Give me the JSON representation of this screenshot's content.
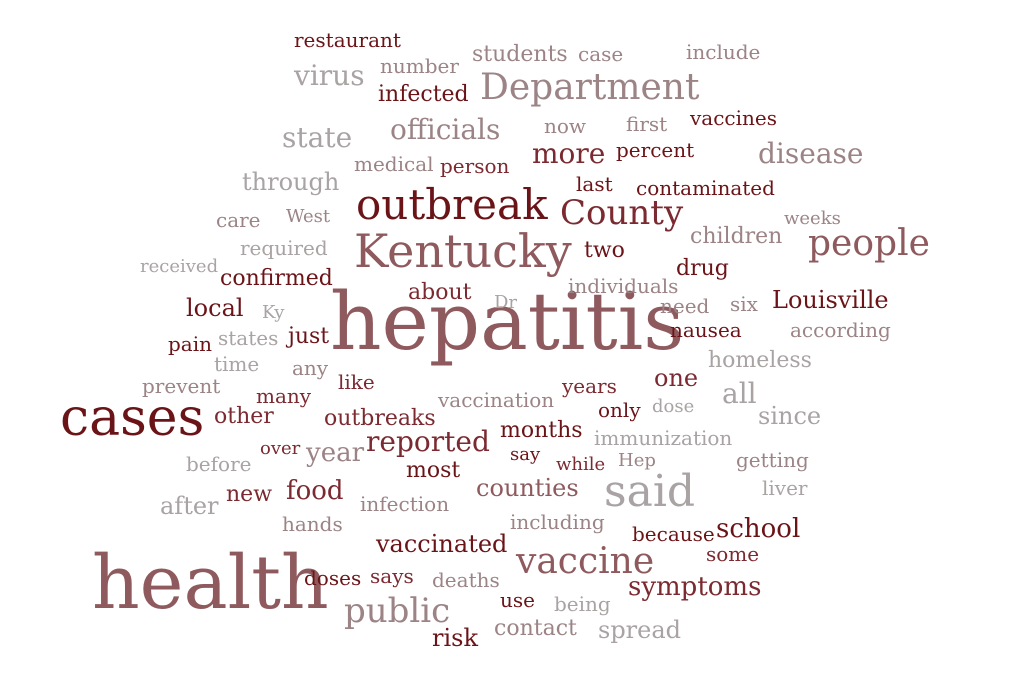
{
  "words": {
    "hepatitis": "hepatitis",
    "health": "health",
    "cases": "cases",
    "kentucky": "Kentucky",
    "outbreak": "outbreak",
    "said": "said",
    "department": "Department",
    "people": "people",
    "county": "County",
    "vaccine": "vaccine",
    "public": "public",
    "reported": "reported",
    "disease": "disease",
    "state": "state",
    "officials": "officials",
    "more": "more",
    "virus": "virus",
    "school": "school",
    "symptoms": "symptoms",
    "food": "food",
    "vaccinated": "vaccinated",
    "louisville": "Louisville",
    "through": "through",
    "counties": "counties",
    "all": "all",
    "since": "since",
    "one": "one",
    "students": "students",
    "infected": "infected",
    "two": "two",
    "drug": "drug",
    "children": "children",
    "local": "local",
    "confirmed": "confirmed",
    "about": "about",
    "months": "months",
    "most": "most",
    "year": "year",
    "other": "other",
    "spread": "spread",
    "risk": "risk",
    "contact": "contact",
    "restaurant": "restaurant",
    "number": "number",
    "case": "case",
    "include": "include",
    "now": "now",
    "first": "first",
    "vaccines": "vaccines",
    "medical": "medical",
    "person": "person",
    "percent": "percent",
    "last": "last",
    "contaminated": "contaminated",
    "care": "care",
    "west": "West",
    "weeks": "weeks",
    "required": "required",
    "received": "received",
    "individuals": "individuals",
    "ky": "Ky",
    "dr": "Dr",
    "need": "need",
    "six": "six",
    "according": "according",
    "pain": "pain",
    "states": "states",
    "just": "just",
    "nausea": "nausea",
    "time": "time",
    "any": "any",
    "homeless": "homeless",
    "prevent": "prevent",
    "like": "like",
    "many": "many",
    "years": "years",
    "outbreaks": "outbreaks",
    "vaccination": "vaccination",
    "only": "only",
    "dose": "dose",
    "immunization": "immunization",
    "before": "before",
    "over": "over",
    "say": "say",
    "while": "while",
    "hep": "Hep",
    "getting": "getting",
    "new": "new",
    "liver": "liver",
    "after": "after",
    "infection": "infection",
    "hands": "hands",
    "including": "including",
    "because": "because",
    "some": "some",
    "doses": "doses",
    "says": "says",
    "deaths": "deaths",
    "use": "use",
    "being": "being"
  },
  "colors": {
    "c0": "#6b1418",
    "c1": "#7a2a30",
    "c2": "#8e5a5e",
    "c3": "#9c8486",
    "c4": "#a9a3a3"
  }
}
